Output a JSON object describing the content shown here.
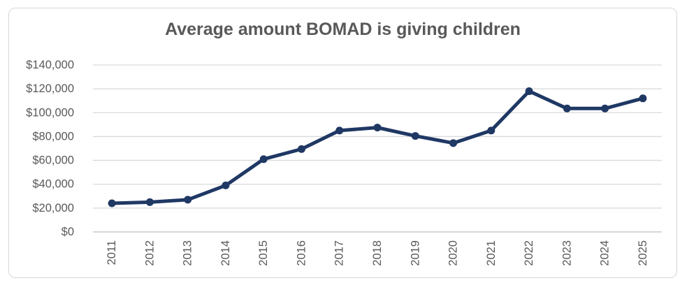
{
  "chart": {
    "title": "Average amount BOMAD is giving children",
    "colors": {
      "line": "#1F3864",
      "marker": "#1F3864",
      "gridline": "#D9D9D9",
      "axis_line": "#BFBFBF",
      "axis_text": "#595959",
      "title_text": "#595959",
      "card_border": "#D7D7D7",
      "card_background": "#FFFFFF"
    }
  },
  "chart_data": {
    "type": "line",
    "title": "Average amount BOMAD is giving children",
    "categories": [
      "2011",
      "2012",
      "2013",
      "2014",
      "2015",
      "2016",
      "2017",
      "2018",
      "2019",
      "2020",
      "2021",
      "2022",
      "2023",
      "2024",
      "2025"
    ],
    "values": [
      24000,
      25000,
      27000,
      39000,
      61000,
      69500,
      85000,
      87500,
      80500,
      74500,
      85000,
      118000,
      103500,
      103500,
      112000
    ],
    "xlabel": "",
    "ylabel": "",
    "ylim": [
      0,
      140000
    ],
    "ytick_interval": 20000,
    "ytick_labels": [
      "$0",
      "$20,000",
      "$40,000",
      "$60,000",
      "$80,000",
      "$100,000",
      "$120,000",
      "$140,000"
    ],
    "grid": true,
    "legend": "none",
    "marker": "circle",
    "x_label_rotation": -90
  }
}
